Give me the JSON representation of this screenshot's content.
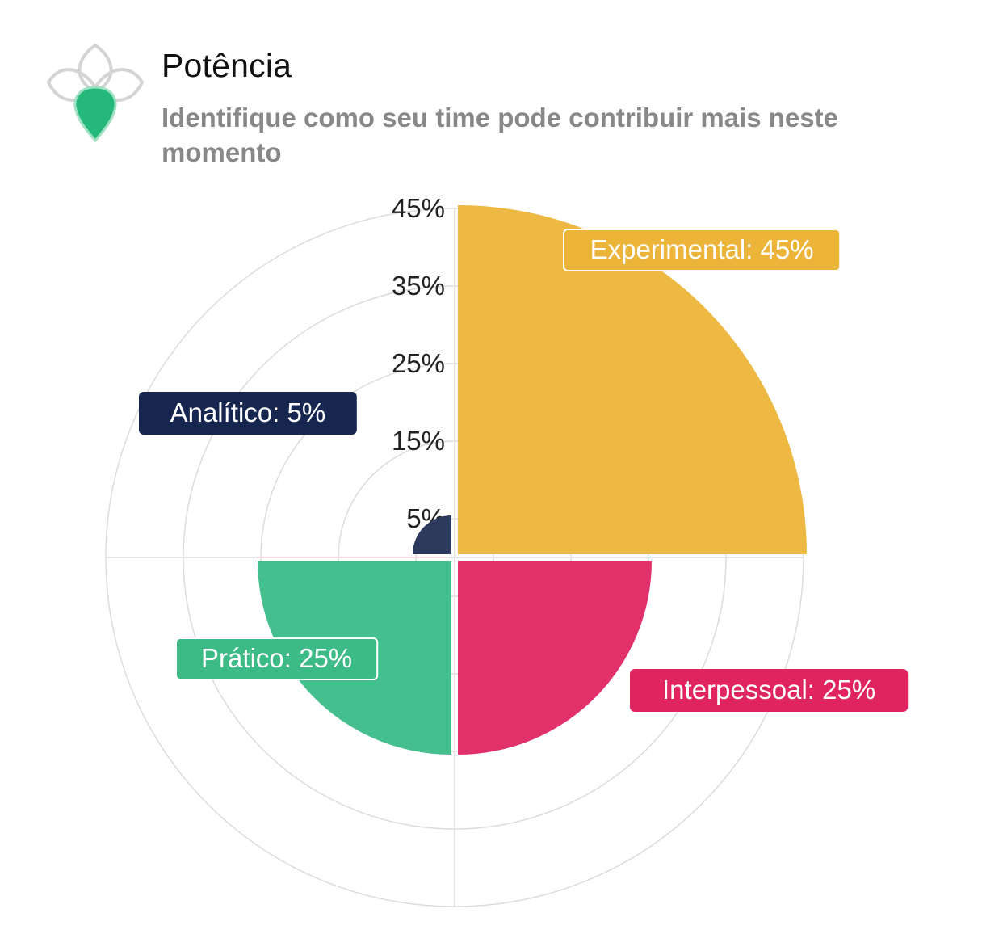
{
  "header": {
    "title": "Potência",
    "subtitle": "Identifique como seu time pode contribuir mais neste momento",
    "logo_icon": "petal-leaf-icon",
    "logo_accent": "#24b97a"
  },
  "chart_data": {
    "type": "polar-area",
    "title": "",
    "scale_max": 45,
    "rings": [
      5,
      15,
      25,
      35,
      45
    ],
    "tick_labels": [
      "5%",
      "15%",
      "25%",
      "35%",
      "45%"
    ],
    "slices": [
      {
        "name": "Experimental",
        "value": 45,
        "label": "Experimental: 45%",
        "color": "#edb943",
        "label_color": "#edb43a",
        "label_border": "#ffffff"
      },
      {
        "name": "Interpessoal",
        "value": 25,
        "label": "Interpessoal: 25%",
        "color": "#e2316a",
        "label_color": "#df2460",
        "label_border": "#df2460"
      },
      {
        "name": "Prático",
        "value": 25,
        "label": "Prático: 25%",
        "color": "#45bf8d",
        "label_color": "#3dbb86",
        "label_border": "#ffffff"
      },
      {
        "name": "Analítico",
        "value": 5,
        "label": "Analítico: 5%",
        "color": "#2d3a5d",
        "label_color": "#17264f",
        "label_border": "#17264f"
      }
    ]
  }
}
